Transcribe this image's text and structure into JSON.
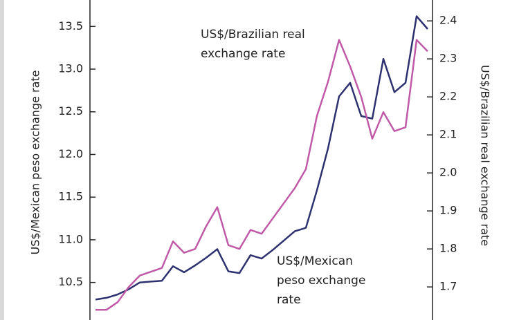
{
  "chart_data": {
    "type": "line",
    "y_label": "US$/Mexican peso exchange rate",
    "y2_label": "US$/Brazilian real exchange rate",
    "annotations": [
      "US$/Brazilian real",
      "exchange rate",
      "US$/Mexican",
      "peso exchange",
      "rate"
    ],
    "series": [
      {
        "name": "US$/Mexican peso exchange rate",
        "color": "#2e3170",
        "axis": "y",
        "values": [
          10.3,
          10.32,
          10.36,
          10.42,
          10.5,
          10.51,
          10.52,
          10.69,
          10.62,
          10.7,
          10.79,
          10.89,
          10.63,
          10.61,
          10.82,
          10.78,
          10.88,
          10.99,
          11.1,
          11.14,
          11.58,
          12.07,
          12.68,
          12.84,
          12.45,
          12.42,
          13.12,
          12.73,
          12.84,
          13.62,
          13.47
        ]
      },
      {
        "name": "US$/Brazilian real exchange rate",
        "color": "#c05aa8",
        "axis": "y2",
        "values": [
          1.64,
          1.64,
          1.66,
          1.7,
          1.73,
          1.74,
          1.75,
          1.82,
          1.79,
          1.8,
          1.86,
          1.91,
          1.81,
          1.8,
          1.85,
          1.84,
          1.88,
          1.92,
          1.96,
          2.01,
          2.15,
          2.24,
          2.35,
          2.28,
          2.2,
          2.09,
          2.16,
          2.11,
          2.12,
          2.35,
          2.32
        ]
      }
    ],
    "ylim": [
      10.06,
      13.81
    ],
    "yticks": [
      {
        "value": 10.5,
        "label": "10.5"
      },
      {
        "value": 11,
        "label": "11.0"
      },
      11.5,
      {
        "value": 12,
        "label": "12.0"
      },
      12.5,
      {
        "value": 13,
        "label": "13.0"
      },
      13.5
    ],
    "y2lim": [
      1.613,
      2.455
    ],
    "y2ticks": [
      1.7,
      1.8,
      1.9,
      {
        "value": 2,
        "label": "2.0"
      },
      2.1,
      2.2,
      2.3,
      2.4
    ]
  }
}
